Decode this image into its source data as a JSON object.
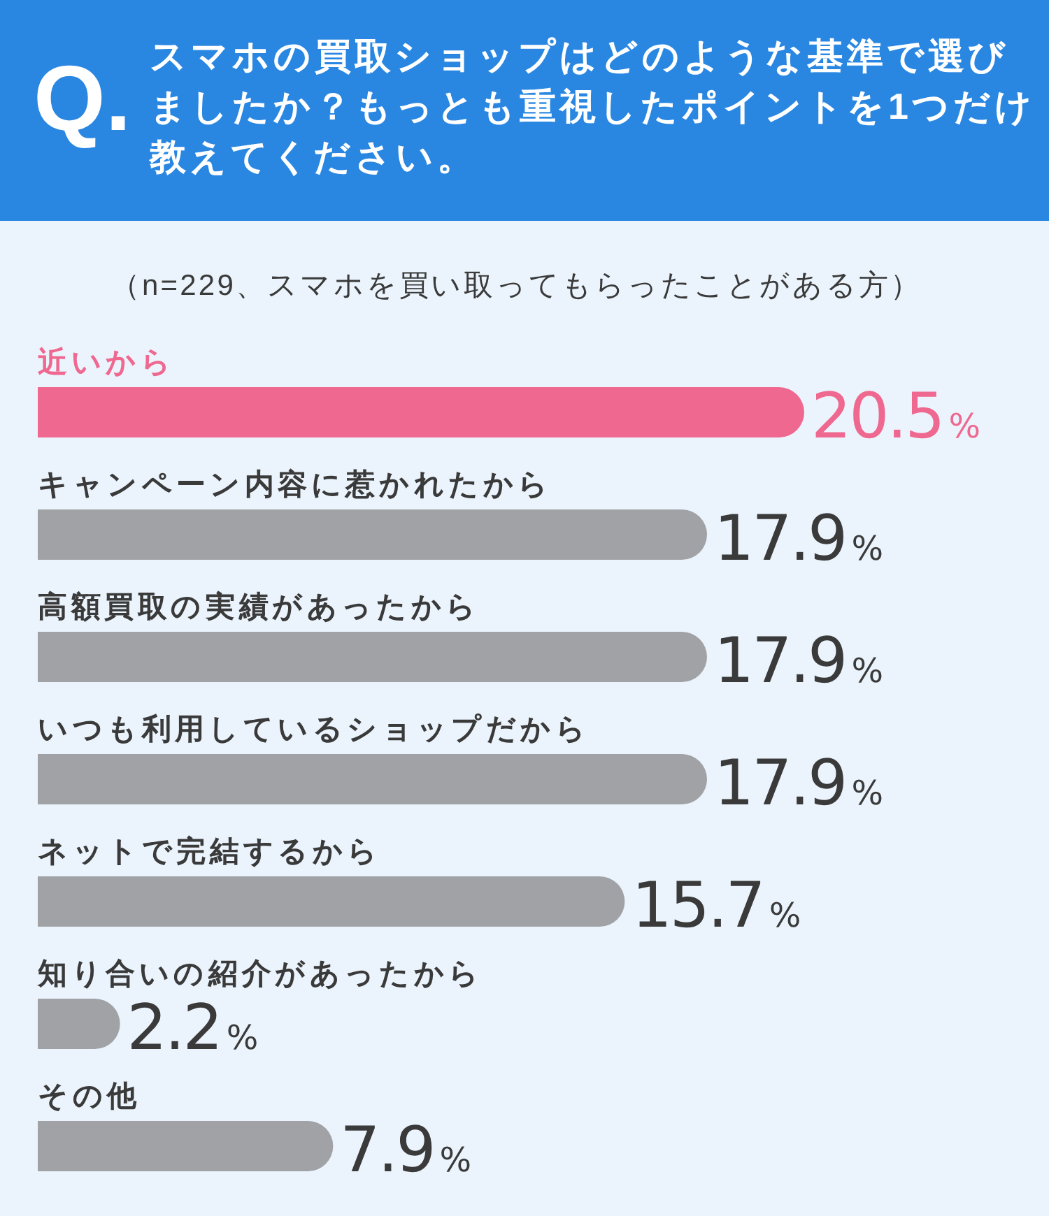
{
  "chart_data": {
    "type": "bar",
    "orientation": "horizontal",
    "title": "スマホの買取ショップはどのような基準で選びましたか？もっとも重視したポイントを1つだけ教えてください。",
    "subtitle": "（n=229、スマホを買い取ってもらったことがある方）",
    "annotations": [
      "Q."
    ],
    "categories": [
      "近いから",
      "キャンペーン内容に惹かれたから",
      "高額買取の実績があったから",
      "いつも利用しているショップだから",
      "ネットで完結するから",
      "知り合いの紹介があったから",
      "その他"
    ],
    "values": [
      20.5,
      17.9,
      17.9,
      17.9,
      15.7,
      2.2,
      7.9
    ],
    "value_labels": [
      "20.5%",
      "17.9%",
      "17.9%",
      "17.9%",
      "15.7%",
      "2.2%",
      "7.9%"
    ],
    "colors": [
      "#ef6890",
      "#a1a2a6",
      "#a1a2a6",
      "#a1a2a6",
      "#a1a2a6",
      "#a1a2a6",
      "#a1a2a6"
    ]
  }
}
